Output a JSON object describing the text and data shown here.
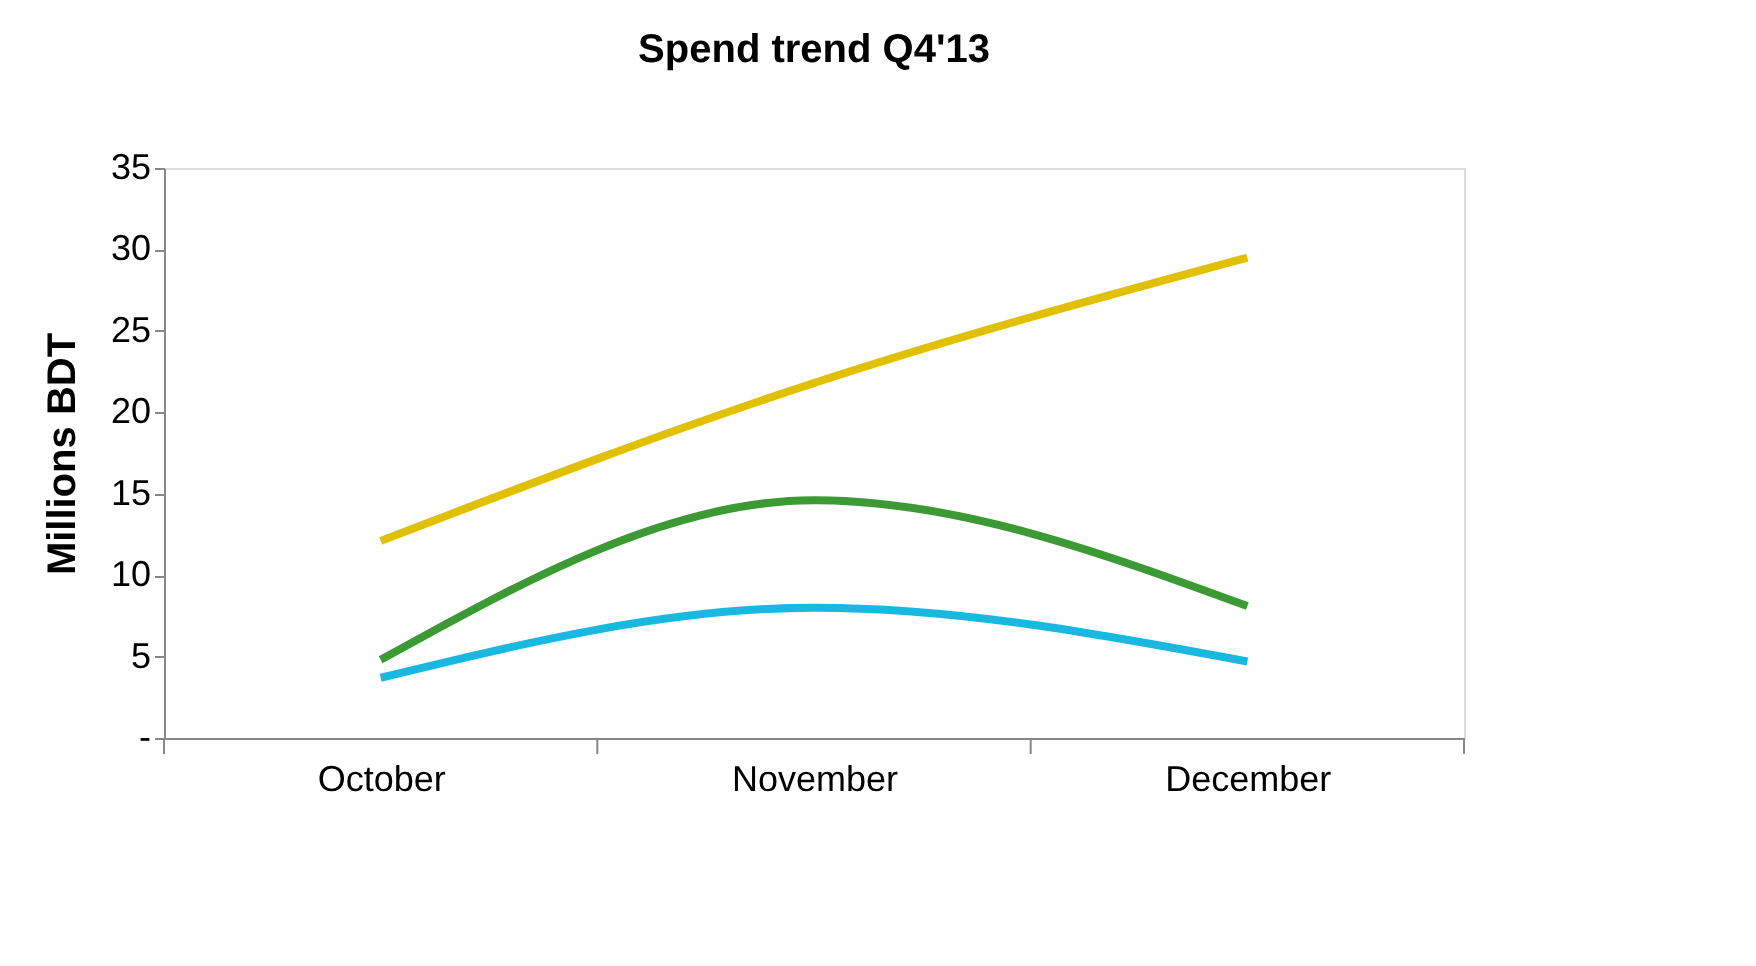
{
  "chart_data": {
    "type": "line",
    "title": "Spend trend Q4'13",
    "ylabel": "Millions BDT",
    "categories": [
      "October",
      "November",
      "December"
    ],
    "series": [
      {
        "color": "#e0c000",
        "values": [
          12.1,
          21.8,
          29.5
        ]
      },
      {
        "color": "#3c9a34",
        "values": [
          4.8,
          14.6,
          8.1
        ]
      },
      {
        "color": "#19b8e0",
        "values": [
          3.7,
          8.0,
          4.7
        ]
      }
    ],
    "ylim": [
      0,
      35
    ],
    "yticks": [
      {
        "value": 0,
        "label": "-"
      },
      5,
      10,
      15,
      20,
      25,
      30,
      35
    ],
    "grid": false,
    "legend": false,
    "marker": "none",
    "line_style": "solid"
  }
}
